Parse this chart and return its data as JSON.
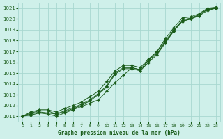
{
  "background_color": "#cff0ea",
  "grid_color": "#a8d8d0",
  "line_color": "#1a5c1a",
  "marker_color": "#1a5c1a",
  "xlabel": "Graphe pression niveau de la mer (hPa)",
  "xlim": [
    -0.5,
    23.5
  ],
  "ylim": [
    1010.5,
    1021.5
  ],
  "yticks": [
    1011,
    1012,
    1013,
    1014,
    1015,
    1016,
    1017,
    1018,
    1019,
    1020,
    1021
  ],
  "xticks": [
    0,
    1,
    2,
    3,
    4,
    5,
    6,
    7,
    8,
    9,
    10,
    11,
    12,
    13,
    14,
    15,
    16,
    17,
    18,
    19,
    20,
    21,
    22,
    23
  ],
  "series": [
    [
      1011.0,
      1011.4,
      1011.6,
      1011.6,
      1011.4,
      1011.7,
      1012.0,
      1012.3,
      1012.8,
      1013.3,
      1014.2,
      1015.2,
      1015.7,
      1015.7,
      1015.5,
      1016.3,
      1017.0,
      1018.2,
      1019.2,
      1020.1,
      1020.2,
      1020.5,
      1021.0,
      1021.1
    ],
    [
      1011.0,
      1011.3,
      1011.5,
      1011.5,
      1011.2,
      1011.5,
      1011.8,
      1012.1,
      1012.5,
      1013.1,
      1013.8,
      1015.0,
      1015.5,
      1015.5,
      1015.3,
      1016.2,
      1016.8,
      1017.9,
      1018.9,
      1019.8,
      1020.0,
      1020.4,
      1020.9,
      1021.0
    ],
    [
      1011.0,
      1011.2,
      1011.4,
      1011.3,
      1011.2,
      1011.4,
      1011.7,
      1012.0,
      1012.4,
      1013.0,
      1013.7,
      1014.9,
      1015.4,
      1015.4,
      1015.2,
      1016.0,
      1016.7,
      1017.8,
      1018.9,
      1019.8,
      1020.0,
      1020.3,
      1020.8,
      1021.0
    ],
    [
      1011.0,
      1011.1,
      1011.3,
      1011.2,
      1011.0,
      1011.3,
      1011.6,
      1011.9,
      1012.2,
      1012.5,
      1013.3,
      1014.1,
      1014.8,
      1015.5,
      1015.3,
      1016.2,
      1017.0,
      1018.0,
      1019.0,
      1019.9,
      1020.1,
      1020.4,
      1020.9,
      1021.0
    ]
  ]
}
